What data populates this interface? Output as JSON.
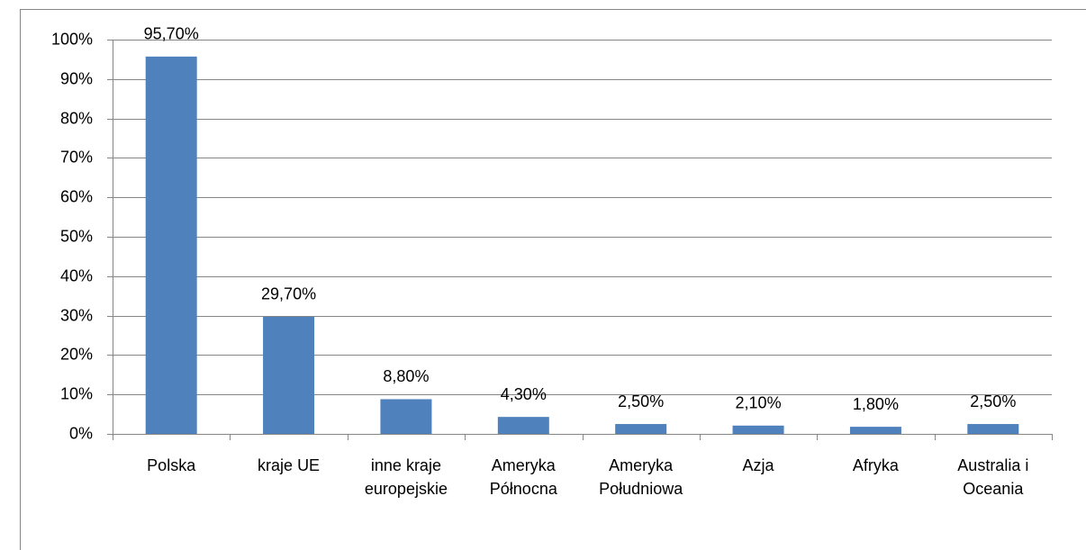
{
  "chart_data": {
    "type": "bar",
    "categories": [
      "Polska",
      "kraje UE",
      "inne kraje\neuropejskie",
      "Ameryka\nPółnocna",
      "Ameryka\nPołudniowa",
      "Azja",
      "Afryka",
      "Australia i\nOceania"
    ],
    "values": [
      95.7,
      29.7,
      8.8,
      4.3,
      2.5,
      2.1,
      1.8,
      2.5
    ],
    "value_labels": [
      "95,70%",
      "29,70%",
      "8,80%",
      "4,30%",
      "2,50%",
      "2,10%",
      "1,80%",
      "2,50%"
    ],
    "color": "#4f81bd",
    "ylim": [
      0,
      100
    ],
    "yticks": [
      {
        "value": 0,
        "label": "0%"
      },
      {
        "value": 10,
        "label": "10%"
      },
      {
        "value": 20,
        "label": "20%"
      },
      {
        "value": 30,
        "label": "30%"
      },
      {
        "value": 40,
        "label": "40%"
      },
      {
        "value": 50,
        "label": "50%"
      },
      {
        "value": 60,
        "label": "60%"
      },
      {
        "value": 70,
        "label": "70%"
      },
      {
        "value": 80,
        "label": "80%"
      },
      {
        "value": 90,
        "label": "90%"
      },
      {
        "value": 100,
        "label": "100%"
      }
    ],
    "grid": true
  }
}
